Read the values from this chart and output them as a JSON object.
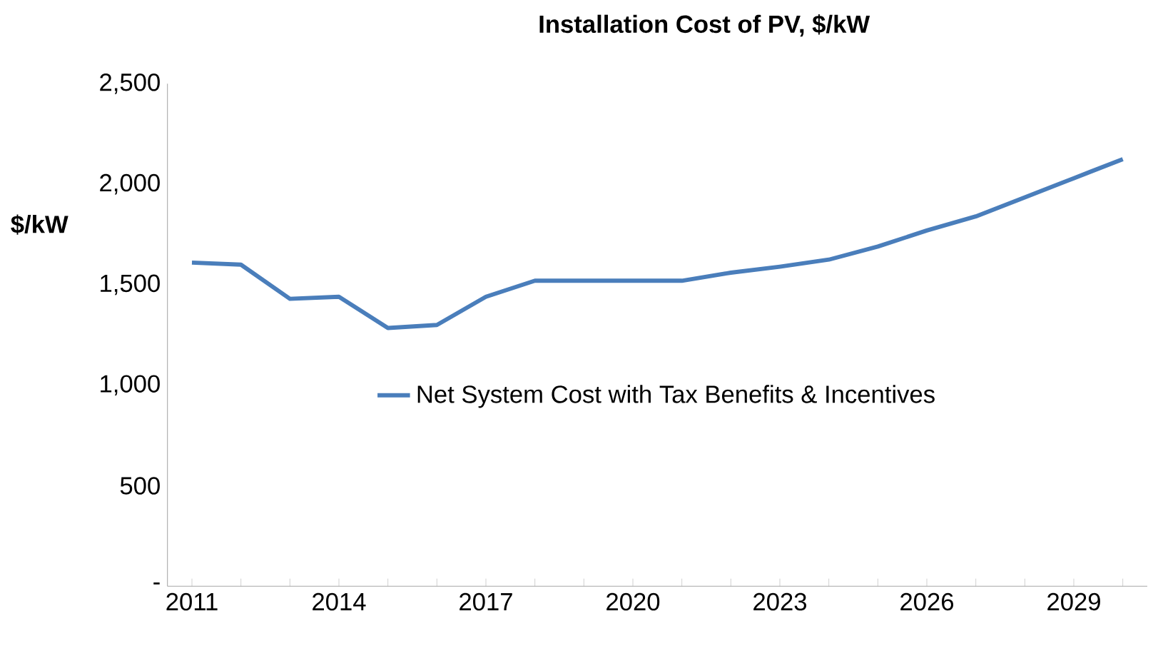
{
  "chart_data": {
    "type": "line",
    "title": "Installation Cost of PV, $/kW",
    "ylabel": "$/kW",
    "categories": [
      "2011",
      null,
      null,
      "2014",
      null,
      null,
      "2017",
      null,
      null,
      "2020",
      null,
      null,
      "2023",
      null,
      null,
      "2026",
      null,
      null,
      "2029",
      null
    ],
    "series": [
      {
        "name": "Net System Cost with Tax Benefits & Incentives",
        "color": "#4a7ebb",
        "values": [
          1610,
          1600,
          1430,
          1440,
          1285,
          1300,
          1440,
          1520,
          1520,
          1520,
          1520,
          1560,
          1590,
          1625,
          1690,
          1770,
          1840,
          1935,
          2030,
          2125
        ]
      }
    ],
    "ylim": [
      0,
      2500
    ],
    "yticks": [
      {
        "value": 0,
        "label": "-"
      },
      {
        "value": 500,
        "label": "500"
      },
      {
        "value": 1000,
        "label": "1,000"
      },
      {
        "value": 1500,
        "label": "1,500"
      },
      {
        "value": 2000,
        "label": "2,000"
      },
      {
        "value": 2500,
        "label": "2,500"
      }
    ],
    "grid": false,
    "legend": "center",
    "marker": "none",
    "line_style": "solid"
  }
}
